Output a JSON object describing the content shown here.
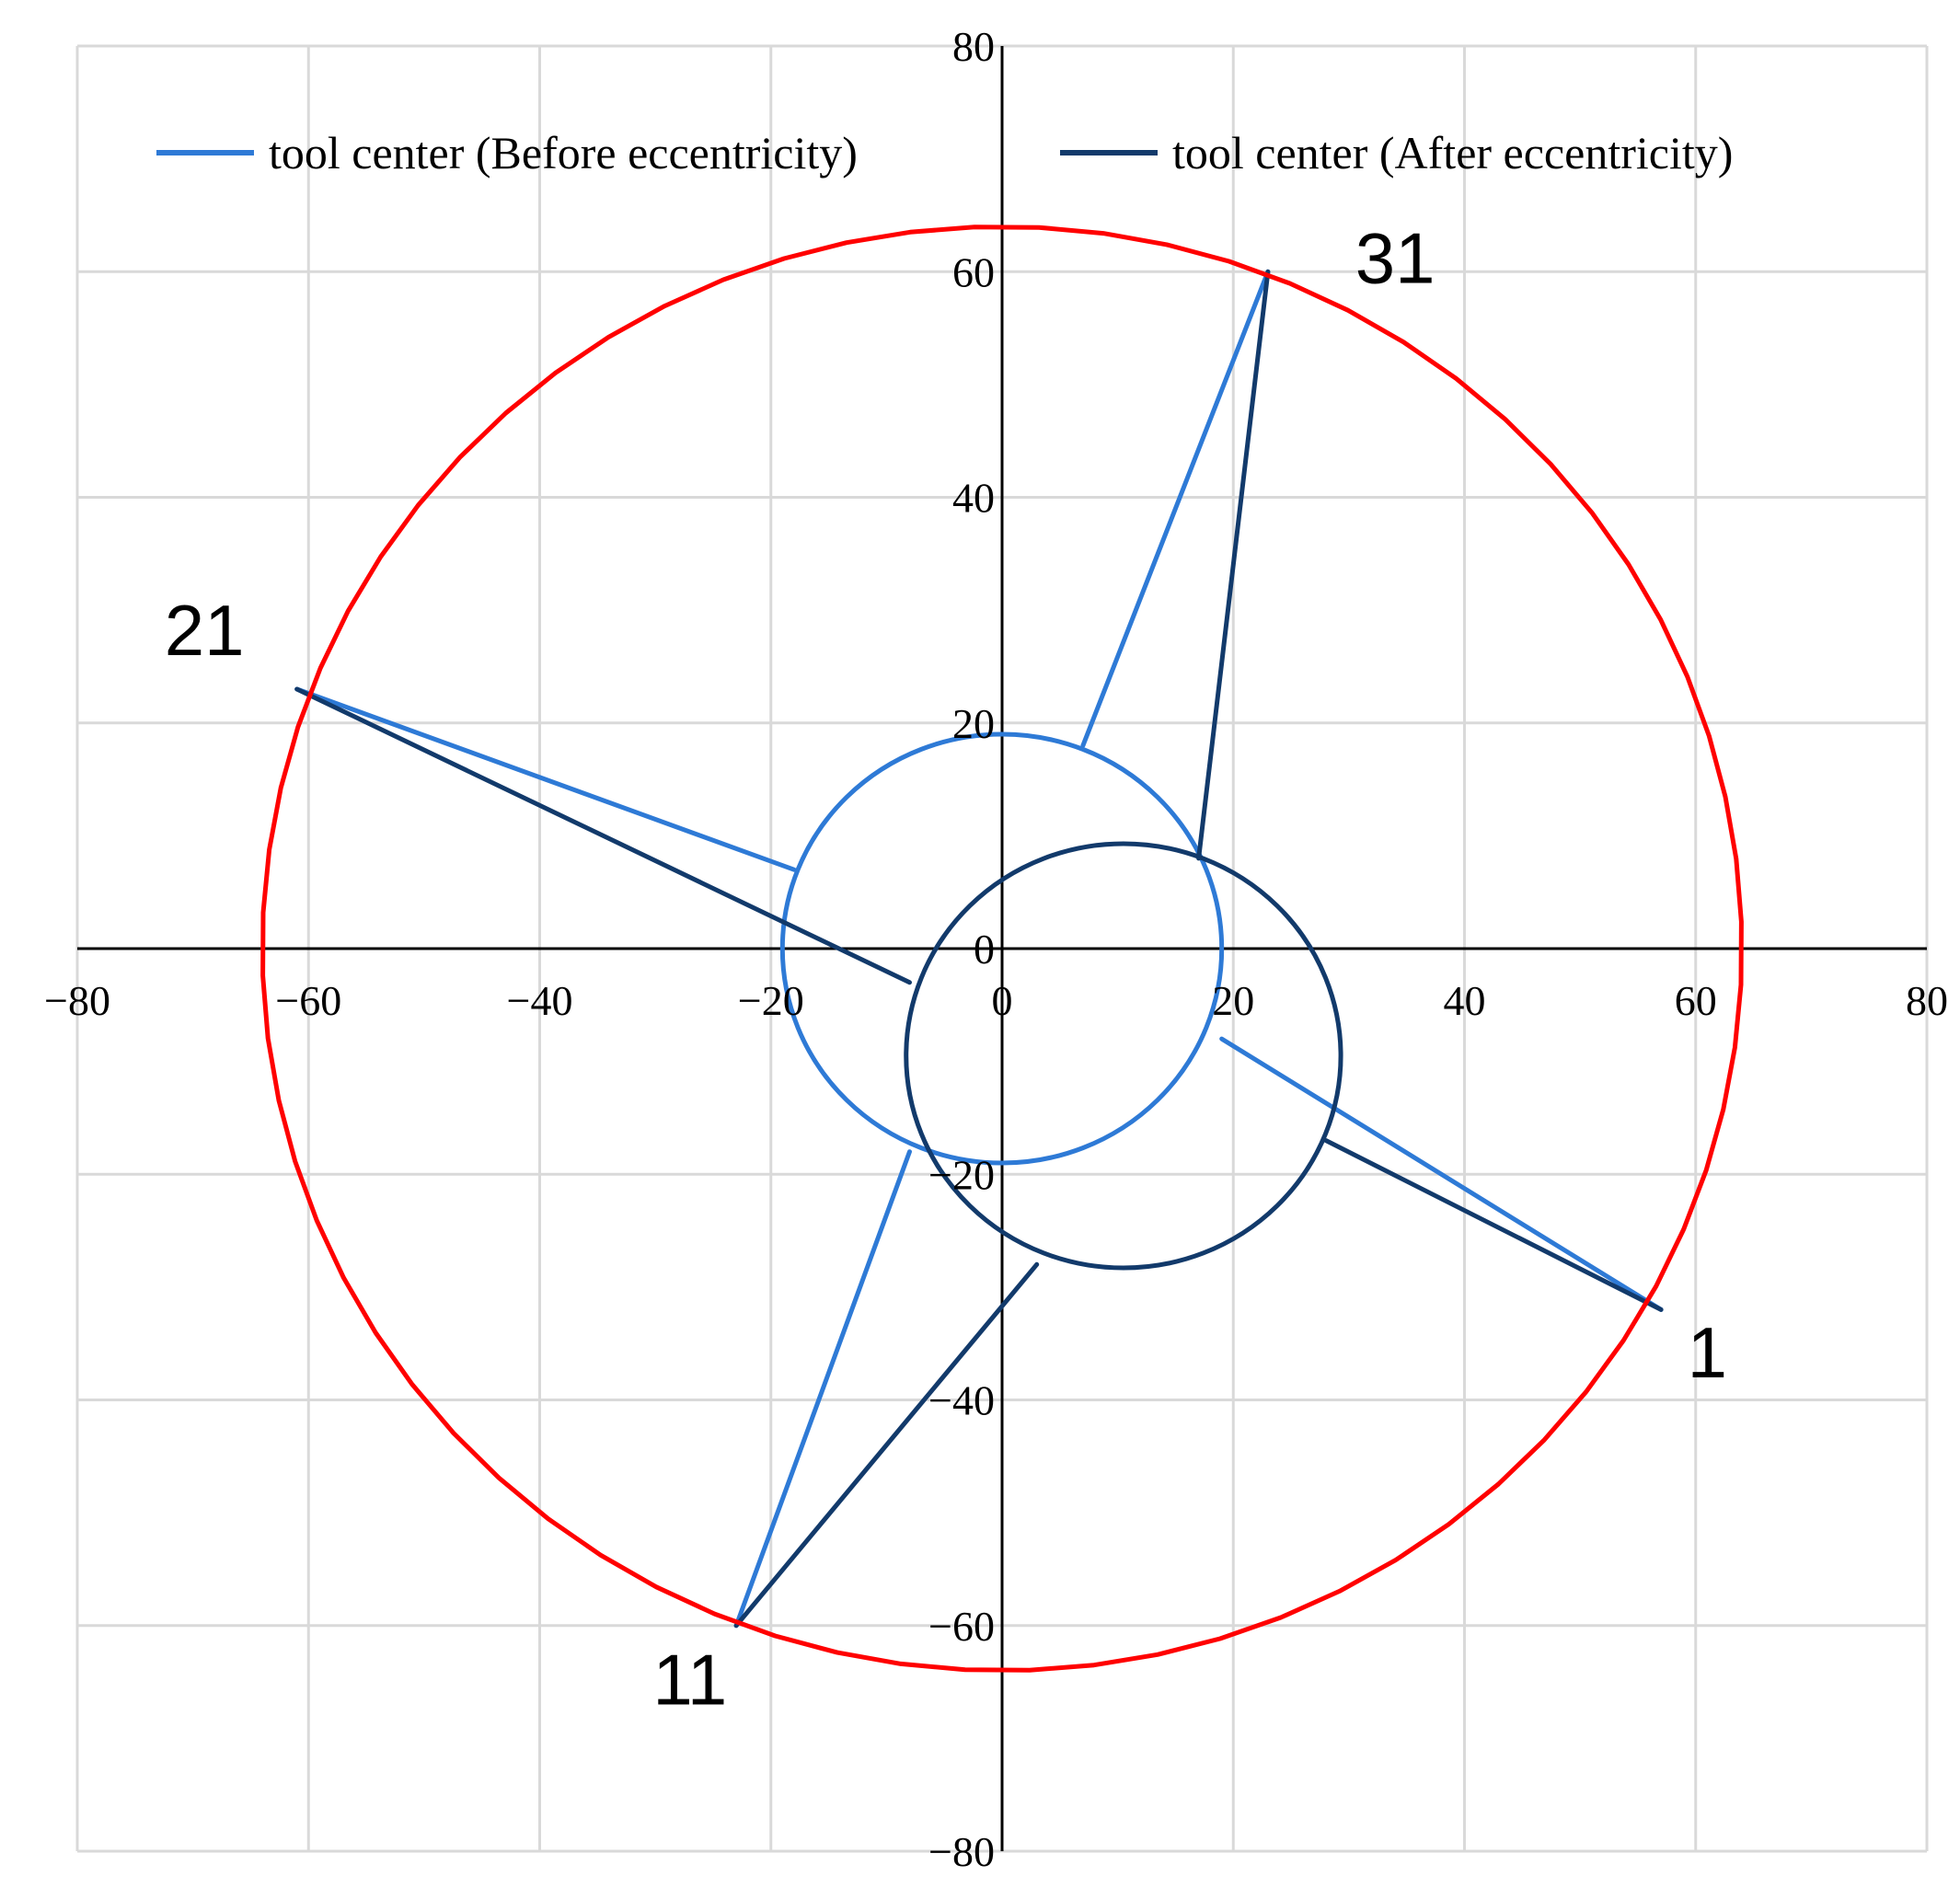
{
  "chart_data": {
    "type": "line",
    "title": "",
    "xlabel": "",
    "ylabel": "",
    "xlim": [
      -80,
      80
    ],
    "ylim": [
      -80,
      80
    ],
    "x_ticks": [
      -80,
      -60,
      -40,
      -20,
      0,
      20,
      40,
      60,
      80
    ],
    "y_ticks": [
      -80,
      -60,
      -40,
      -20,
      0,
      20,
      40,
      60,
      80
    ],
    "x_tick_labels": [
      "−80",
      "−60",
      "−40",
      "−20",
      "0",
      "20",
      "40",
      "60",
      "80"
    ],
    "y_tick_labels": [
      "−80",
      "−60",
      "−40",
      "−20",
      "0",
      "20",
      "40",
      "60",
      "80"
    ],
    "grid": true,
    "legend_position": "top",
    "legend": [
      {
        "label": "tool center (Before eccentricity)",
        "color": "#2e7ad6"
      },
      {
        "label": "tool center (After eccentricity)",
        "color": "#123a6b"
      }
    ],
    "series": [
      {
        "name": "tool center (Before eccentricity)",
        "color": "#2e7ad6",
        "segments": [
          {
            "kind": "circle",
            "center": [
              0,
              0
            ],
            "radius": 19
          },
          {
            "kind": "line",
            "points": [
              [
                57,
                -32
              ],
              [
                19,
                -8
              ]
            ]
          },
          {
            "kind": "line",
            "points": [
              [
                -23,
                -60
              ],
              [
                -8,
                -18
              ]
            ]
          },
          {
            "kind": "line",
            "points": [
              [
                -61,
                23
              ],
              [
                -18,
                7
              ]
            ]
          },
          {
            "kind": "line",
            "points": [
              [
                23,
                60
              ],
              [
                7,
                18
              ]
            ]
          }
        ]
      },
      {
        "name": "tool center (After eccentricity)",
        "color": "#123a6b",
        "segments": [
          {
            "kind": "circle",
            "center": [
              10.5,
              -9.5
            ],
            "radius": 18.8
          },
          {
            "kind": "line",
            "points": [
              [
                57,
                -32
              ],
              [
                28,
                -17
              ]
            ]
          },
          {
            "kind": "line",
            "points": [
              [
                -23,
                -60
              ],
              [
                3,
                -28
              ]
            ]
          },
          {
            "kind": "line",
            "points": [
              [
                -61,
                23
              ],
              [
                -8,
                -3
              ]
            ]
          },
          {
            "kind": "line",
            "points": [
              [
                23,
                60
              ],
              [
                17,
                8
              ]
            ]
          }
        ]
      },
      {
        "color": "#ff0000",
        "segments": [
          {
            "kind": "circle",
            "center": [
              0,
              0
            ],
            "radius": 64,
            "points": 72
          }
        ]
      }
    ],
    "annotations": [
      {
        "text": "1",
        "x": 61,
        "y": -38
      },
      {
        "text": "11",
        "x": -27,
        "y": -67
      },
      {
        "text": "21",
        "x": -69,
        "y": 26
      },
      {
        "text": "31",
        "x": 34,
        "y": 59
      }
    ]
  }
}
